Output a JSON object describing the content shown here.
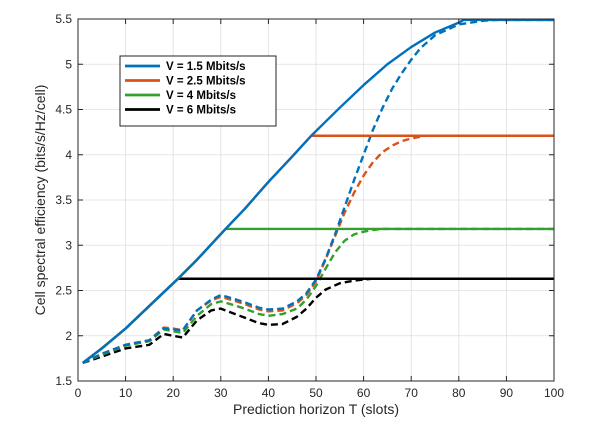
{
  "chart_data": {
    "type": "line",
    "title": "",
    "xlabel": "Prediction horizon T (slots)",
    "ylabel": "Cell spectral efficiency (bits/s/Hz/cell)",
    "xlim": [
      0,
      100
    ],
    "ylim": [
      1.5,
      5.5
    ],
    "xticks": [
      0,
      10,
      20,
      30,
      40,
      50,
      60,
      70,
      80,
      90,
      100
    ],
    "yticks": [
      1.5,
      2,
      2.5,
      3,
      3.5,
      4,
      4.5,
      5,
      5.5
    ],
    "xtick_labels": [
      "0",
      "10",
      "20",
      "30",
      "40",
      "50",
      "60",
      "70",
      "80",
      "90",
      "100"
    ],
    "ytick_labels": [
      "1.5",
      "2",
      "2.5",
      "3",
      "3.5",
      "4",
      "4.5",
      "5",
      "5.5"
    ],
    "grid": true,
    "legend_position": "top-left",
    "series": [
      {
        "name": "V = 1.5 Mbits/s",
        "color": "#0072BD",
        "solid": {
          "x": [
            1,
            5,
            10,
            15,
            21,
            25,
            31,
            35,
            40,
            45,
            49,
            55,
            60,
            65,
            70,
            75,
            80,
            81,
            85,
            90,
            95,
            100
          ],
          "y": [
            1.7,
            1.86,
            2.08,
            2.33,
            2.63,
            2.84,
            3.18,
            3.4,
            3.7,
            3.98,
            4.21,
            4.52,
            4.77,
            5.0,
            5.19,
            5.35,
            5.46,
            5.49,
            5.49,
            5.49,
            5.49,
            5.49
          ]
        },
        "dashed": {
          "x": [
            1,
            5,
            10,
            15,
            18,
            20,
            22,
            25,
            28,
            30,
            32,
            35,
            38,
            40,
            43,
            46,
            48,
            50,
            52,
            54,
            56,
            58,
            60,
            62,
            64,
            66,
            68,
            70,
            72,
            75,
            80,
            85,
            88,
            90,
            95,
            100
          ],
          "y": [
            1.7,
            1.8,
            1.9,
            1.95,
            2.08,
            2.07,
            2.06,
            2.28,
            2.4,
            2.45,
            2.42,
            2.37,
            2.31,
            2.29,
            2.3,
            2.38,
            2.47,
            2.62,
            2.85,
            3.12,
            3.42,
            3.72,
            4.0,
            4.28,
            4.52,
            4.73,
            4.9,
            5.05,
            5.18,
            5.32,
            5.44,
            5.48,
            5.49,
            5.49,
            5.49,
            5.49
          ]
        }
      },
      {
        "name": "V = 2.5 Mbits/s",
        "color": "#D95319",
        "solid": {
          "x": [
            1,
            5,
            10,
            15,
            21,
            25,
            31,
            35,
            40,
            45,
            49,
            55,
            60,
            70,
            80,
            90,
            100
          ],
          "y": [
            1.7,
            1.86,
            2.08,
            2.33,
            2.63,
            2.84,
            3.18,
            3.4,
            3.7,
            3.98,
            4.21,
            4.21,
            4.21,
            4.21,
            4.21,
            4.21,
            4.21
          ]
        },
        "dashed": {
          "x": [
            1,
            5,
            10,
            15,
            18,
            20,
            22,
            25,
            28,
            30,
            32,
            35,
            38,
            40,
            43,
            46,
            48,
            50,
            52,
            54,
            56,
            58,
            60,
            62,
            64,
            66,
            68,
            70,
            73,
            75,
            80,
            90,
            100
          ],
          "y": [
            1.7,
            1.8,
            1.9,
            1.95,
            2.09,
            2.08,
            2.06,
            2.28,
            2.39,
            2.43,
            2.4,
            2.35,
            2.29,
            2.27,
            2.28,
            2.36,
            2.45,
            2.6,
            2.84,
            3.1,
            3.36,
            3.58,
            3.77,
            3.92,
            4.03,
            4.1,
            4.15,
            4.18,
            4.21,
            4.21,
            4.21,
            4.21,
            4.21
          ]
        }
      },
      {
        "name": "V = 4 Mbits/s",
        "color": "#33A02C",
        "solid": {
          "x": [
            1,
            5,
            10,
            15,
            21,
            25,
            31,
            35,
            40,
            50,
            60,
            70,
            80,
            90,
            100
          ],
          "y": [
            1.7,
            1.86,
            2.08,
            2.33,
            2.63,
            2.84,
            3.18,
            3.18,
            3.18,
            3.18,
            3.18,
            3.18,
            3.18,
            3.18,
            3.18
          ]
        },
        "dashed": {
          "x": [
            1,
            5,
            10,
            15,
            18,
            20,
            22,
            25,
            28,
            30,
            32,
            35,
            38,
            40,
            43,
            46,
            48,
            50,
            52,
            54,
            56,
            58,
            60,
            62,
            64,
            66,
            70,
            80,
            90,
            100
          ],
          "y": [
            1.7,
            1.79,
            1.89,
            1.94,
            2.07,
            2.05,
            2.03,
            2.22,
            2.35,
            2.38,
            2.35,
            2.3,
            2.24,
            2.22,
            2.24,
            2.3,
            2.4,
            2.55,
            2.74,
            2.92,
            3.05,
            3.12,
            3.15,
            3.17,
            3.18,
            3.18,
            3.18,
            3.18,
            3.18,
            3.18
          ]
        }
      },
      {
        "name": "V = 6 Mbits/s",
        "color": "#000000",
        "solid": {
          "x": [
            1,
            5,
            10,
            15,
            21,
            25,
            30,
            40,
            50,
            60,
            70,
            80,
            90,
            100
          ],
          "y": [
            1.7,
            1.86,
            2.08,
            2.33,
            2.63,
            2.63,
            2.63,
            2.63,
            2.63,
            2.63,
            2.63,
            2.63,
            2.63,
            2.63
          ]
        },
        "dashed": {
          "x": [
            1,
            5,
            10,
            15,
            18,
            20,
            22,
            25,
            28,
            30,
            32,
            35,
            38,
            40,
            43,
            46,
            48,
            50,
            52,
            55,
            58,
            60,
            62,
            65,
            70,
            80,
            90,
            100
          ],
          "y": [
            1.7,
            1.77,
            1.86,
            1.9,
            2.02,
            2.0,
            1.98,
            2.17,
            2.28,
            2.3,
            2.26,
            2.2,
            2.14,
            2.12,
            2.13,
            2.21,
            2.3,
            2.42,
            2.51,
            2.58,
            2.61,
            2.62,
            2.63,
            2.63,
            2.63,
            2.63,
            2.63,
            2.63
          ]
        }
      }
    ]
  }
}
